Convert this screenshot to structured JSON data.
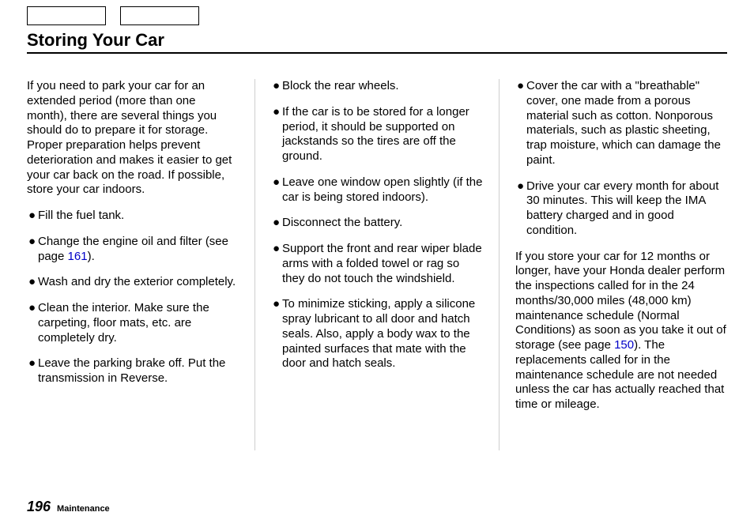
{
  "title": "Storing Your Car",
  "col1": {
    "intro": "If you need to park your car for an extended period (more than one month), there are several things you should do to prepare it for storage. Proper preparation helps prevent deterioration and makes it easier to get your car back on the road. If possible, store your car indoors.",
    "b1": "Fill the fuel tank.",
    "b2a": "Change the engine oil and filter (see page ",
    "b2link": "161",
    "b2b": ").",
    "b3": "Wash and dry the exterior completely.",
    "b4": "Clean the interior. Make sure the carpeting, floor mats, etc. are completely dry.",
    "b5": "Leave the parking brake off. Put the transmission in Reverse."
  },
  "col2": {
    "b1": "Block the rear wheels.",
    "b2": "If the car is to be stored for a longer period, it should be supported on jackstands so the tires are off the ground.",
    "b3": "Leave one window open slightly (if the car is being stored indoors).",
    "b4": "Disconnect the battery.",
    "b5": "Support the front and rear wiper blade arms with a folded towel or rag so they do not touch the windshield.",
    "b6": "To minimize sticking, apply a silicone spray lubricant to all door and hatch seals. Also, apply a body wax to the painted surfaces that mate with the door and hatch seals."
  },
  "col3": {
    "b1": "Cover the car with a \"breathable\" cover, one made from a porous material such as cotton. Nonporous materials, such as plastic sheeting, trap moisture, which can damage the paint.",
    "b2": "Drive your car every month for about 30 minutes. This will keep the IMA battery charged and in good condition.",
    "p1a": "If you store your car for 12 months or longer, have your Honda dealer perform the inspections called for in the 24 months/30,000 miles (48,000 km) maintenance schedule (Normal Conditions) as soon as you take it out of storage (see page ",
    "p1link": "150",
    "p1b": "). The replacements called for in the maintenance schedule are not needed unless the car has actually reached that time or mileage."
  },
  "footer": {
    "page": "196",
    "section": "Maintenance"
  }
}
